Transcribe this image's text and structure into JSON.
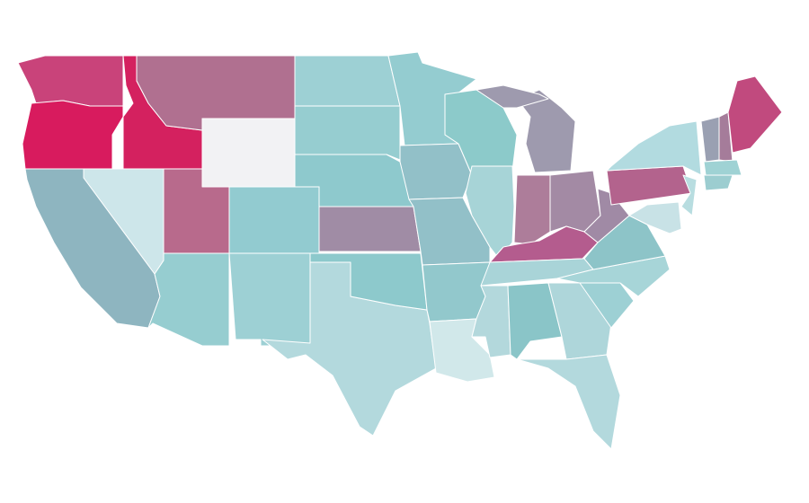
{
  "map": {
    "background": "#ffffff",
    "border_color": "#ffffff",
    "regions": [
      {
        "color": "#c9437a"
      },
      {
        "color": "#d81b5e"
      },
      {
        "color": "#d4215f"
      },
      {
        "color": "#b07090"
      },
      {
        "color": "#f2f2f4"
      },
      {
        "color": "#9dd0d4"
      },
      {
        "color": "#96cdd0"
      },
      {
        "color": "#8ec9cd"
      },
      {
        "color": "#a08ca5"
      },
      {
        "color": "#92cbd0"
      },
      {
        "color": "#b86a8c"
      },
      {
        "color": "#cde6ea"
      },
      {
        "color": "#8eb5c0"
      },
      {
        "color": "#96cdd0"
      },
      {
        "color": "#9dd0d4"
      },
      {
        "color": "#b3d9dd"
      },
      {
        "color": "#8dc9cc"
      },
      {
        "color": "#94ccd0"
      },
      {
        "color": "#92c0c8"
      },
      {
        "color": "#92c0c8"
      },
      {
        "color": "#92c8cc"
      },
      {
        "color": "#d1e8ea"
      },
      {
        "color": "#8ccaca"
      },
      {
        "color": "#a7d4d7"
      },
      {
        "color": "#9e9aae"
      },
      {
        "color": "#9e9aae"
      },
      {
        "color": "#ad7d9a"
      },
      {
        "color": "#a38aa4"
      },
      {
        "color": "#b45c8e"
      },
      {
        "color": "#a9d4d8"
      },
      {
        "color": "#b3d8dc"
      },
      {
        "color": "#8ac5c8"
      },
      {
        "color": "#aed6da"
      },
      {
        "color": "#b3d9dd"
      },
      {
        "color": "#9dd0d4"
      },
      {
        "color": "#a7d5d8"
      },
      {
        "color": "#8dc4c8"
      },
      {
        "color": "#a08aa5"
      },
      {
        "color": "#b3638d"
      },
      {
        "color": "#b2dbe0"
      },
      {
        "color": "#b8dde0"
      },
      {
        "color": "#c8e2e6"
      },
      {
        "color": "#9aa0b2"
      },
      {
        "color": "#a57c9a"
      },
      {
        "color": "#c14a7e"
      },
      {
        "color": "#9fd2d4"
      },
      {
        "color": "#9ccdd0"
      }
    ]
  }
}
